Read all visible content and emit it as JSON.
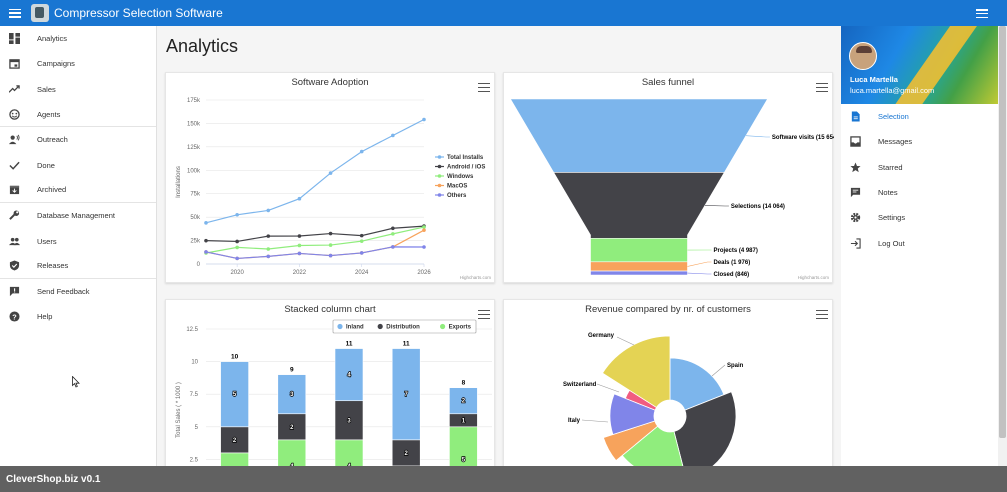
{
  "app": {
    "title": "Compressor Selection Software"
  },
  "sidebar": {
    "items": [
      {
        "label": "Analytics",
        "icon": "dashboard-icon"
      },
      {
        "label": "Campaigns",
        "icon": "calendar-icon"
      },
      {
        "label": "Sales",
        "icon": "trending-up-icon"
      },
      {
        "label": "Agents",
        "icon": "face-icon"
      },
      {
        "label": "Outreach",
        "icon": "voice-person-icon"
      },
      {
        "label": "Done",
        "icon": "check-icon"
      },
      {
        "label": "Archived",
        "icon": "archive-icon"
      },
      {
        "label": "Database Management",
        "icon": "wrench-icon"
      },
      {
        "label": "Users",
        "icon": "people-icon"
      },
      {
        "label": "Releases",
        "icon": "shield-check-icon"
      },
      {
        "label": "Send Feedback",
        "icon": "feedback-icon"
      },
      {
        "label": "Help",
        "icon": "help-icon"
      }
    ]
  },
  "page": {
    "title": "Analytics"
  },
  "charts": {
    "credit": "Highcharts.com"
  },
  "profile": {
    "name": "Luca Martella",
    "email": "luca.martella@gmail.com"
  },
  "right_menu": {
    "items": [
      {
        "label": "Selection",
        "icon": "document-icon"
      },
      {
        "label": "Messages",
        "icon": "inbox-icon"
      },
      {
        "label": "Starred",
        "icon": "star-icon"
      },
      {
        "label": "Notes",
        "icon": "notes-icon"
      },
      {
        "label": "Settings",
        "icon": "gear-icon"
      },
      {
        "label": "Log Out",
        "icon": "logout-icon"
      }
    ]
  },
  "footer": {
    "text": "CleverShop.biz v0.1"
  },
  "chart_data": [
    {
      "type": "line",
      "title": "Software Adoption",
      "ylabel": "Installations",
      "x": [
        2019,
        2020,
        2021,
        2022,
        2023,
        2024,
        2025,
        2026
      ],
      "ylim": [
        0,
        175000
      ],
      "yticks": [
        "0",
        "25k",
        "50k",
        "75k",
        "100k",
        "125k",
        "150k",
        "175k"
      ],
      "xticks": [
        "2020",
        "2022",
        "2024",
        "2026"
      ],
      "series": [
        {
          "name": "Total Installs",
          "color": "#7cb5ec",
          "values": [
            43934,
            52503,
            57177,
            69658,
            97031,
            119931,
            137133,
            154175
          ]
        },
        {
          "name": "Android / iOS",
          "color": "#434348",
          "values": [
            24916,
            24064,
            29742,
            29851,
            32490,
            30282,
            38121,
            40434
          ]
        },
        {
          "name": "Windows",
          "color": "#90ed7d",
          "values": [
            11744,
            17722,
            16005,
            19771,
            20185,
            24377,
            32147,
            39387
          ]
        },
        {
          "name": "MacOS",
          "color": "#f7a35c",
          "values": [
            12908,
            5948,
            8105,
            11248,
            8989,
            11816,
            18274,
            36100
          ]
        },
        {
          "name": "Others",
          "color": "#8085e9",
          "values": [
            12908,
            5948,
            8105,
            11248,
            8989,
            11816,
            18274,
            18111
          ]
        }
      ]
    },
    {
      "type": "funnel",
      "title": "Sales funnel",
      "categories": [
        "Software visits",
        "Selections",
        "Projects",
        "Deals",
        "Closed"
      ],
      "values": [
        15654,
        14064,
        4987,
        1976,
        846
      ],
      "labels": [
        "Software visits (15 654",
        "Selections (14 064)",
        "Projects (4 987)",
        "Deals (1 976)",
        "Closed (846)"
      ],
      "colors": [
        "#7cb5ec",
        "#434348",
        "#90ed7d",
        "#f7a35c",
        "#8085e9"
      ]
    },
    {
      "type": "bar",
      "stacked": true,
      "title": "Stacked column chart",
      "ylabel": "Total Sales ( * 1000 )",
      "yticks": [
        "2.5",
        "5",
        "7.5",
        "10",
        "12.5"
      ],
      "ylim": [
        0,
        12.5
      ],
      "totals": [
        10,
        9,
        11,
        11,
        8
      ],
      "series": [
        {
          "name": "Inland",
          "color": "#7cb5ec",
          "values": [
            5,
            3,
            4,
            7,
            2
          ]
        },
        {
          "name": "Distribution",
          "color": "#434348",
          "values": [
            2,
            2,
            3,
            2,
            1
          ]
        },
        {
          "name": "Exports",
          "color": "#90ed7d",
          "values": [
            3,
            4,
            4,
            2,
            5
          ]
        }
      ]
    },
    {
      "type": "pie",
      "title": "Revenue compared by nr. of customers",
      "labels": [
        "Germany",
        "Spain",
        "Switzerland",
        "Italy"
      ],
      "slices": [
        {
          "color": "#7cb5ec",
          "value": 19
        },
        {
          "color": "#434348",
          "value": 27
        },
        {
          "color": "#90ed7d",
          "value": 18
        },
        {
          "color": "#f7a35c",
          "value": 6
        },
        {
          "color": "#8085e9",
          "value": 11
        },
        {
          "color": "#f15c80",
          "value": 3
        },
        {
          "color": "#e4d354",
          "value": 16
        }
      ]
    }
  ]
}
